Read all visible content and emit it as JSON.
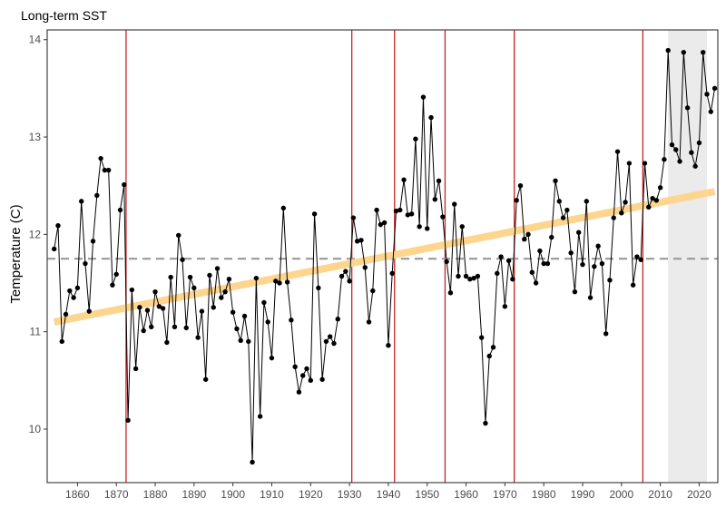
{
  "chart_data": {
    "type": "line",
    "title": "Long-term SST",
    "xlabel": "",
    "ylabel": "Temperature (C)",
    "xlim": [
      1852.2,
      2024.8
    ],
    "ylim": [
      9.45,
      14.1
    ],
    "x_ticks": [
      1860,
      1870,
      1880,
      1890,
      1900,
      1910,
      1920,
      1930,
      1940,
      1950,
      1960,
      1970,
      1980,
      1990,
      2000,
      2010,
      2020
    ],
    "y_ticks": [
      10,
      11,
      12,
      13,
      14
    ],
    "grid": false,
    "mean_line": 11.75,
    "trend": {
      "start": [
        1854,
        11.1
      ],
      "end": [
        2024,
        12.44
      ],
      "color": "#fdd58f"
    },
    "breakpoints": [
      1872.5,
      1930.6,
      1941.6,
      1954.6,
      1972.4,
      2005.5
    ],
    "highlight_range": [
      2012,
      2022
    ],
    "colors": {
      "series": "#000000",
      "breakpoint": "#cc2222",
      "mean": "#999999",
      "highlight": "#ebebeb"
    },
    "series": [
      {
        "name": "SST",
        "x": [
          1854,
          1855,
          1856,
          1857,
          1858,
          1859,
          1860,
          1861,
          1862,
          1863,
          1864,
          1865,
          1866,
          1867,
          1868,
          1869,
          1870,
          1871,
          1872,
          1873,
          1874,
          1875,
          1876,
          1877,
          1878,
          1879,
          1880,
          1881,
          1882,
          1883,
          1884,
          1885,
          1886,
          1887,
          1888,
          1889,
          1890,
          1891,
          1892,
          1893,
          1894,
          1895,
          1896,
          1897,
          1898,
          1899,
          1900,
          1901,
          1902,
          1903,
          1904,
          1905,
          1906,
          1907,
          1908,
          1909,
          1910,
          1911,
          1912,
          1913,
          1914,
          1915,
          1916,
          1917,
          1918,
          1919,
          1920,
          1921,
          1922,
          1923,
          1924,
          1925,
          1926,
          1927,
          1928,
          1929,
          1930,
          1931,
          1932,
          1933,
          1934,
          1935,
          1936,
          1937,
          1938,
          1939,
          1940,
          1941,
          1942,
          1943,
          1944,
          1945,
          1946,
          1947,
          1948,
          1949,
          1950,
          1951,
          1952,
          1953,
          1954,
          1955,
          1956,
          1957,
          1958,
          1959,
          1960,
          1961,
          1962,
          1963,
          1964,
          1965,
          1966,
          1967,
          1968,
          1969,
          1970,
          1971,
          1972,
          1973,
          1974,
          1975,
          1976,
          1977,
          1978,
          1979,
          1980,
          1981,
          1982,
          1983,
          1984,
          1985,
          1986,
          1987,
          1988,
          1989,
          1990,
          1991,
          1992,
          1993,
          1994,
          1995,
          1996,
          1997,
          1998,
          1999,
          2000,
          2001,
          2002,
          2003,
          2004,
          2005,
          2006,
          2007,
          2008,
          2009,
          2010,
          2011,
          2012,
          2013,
          2014,
          2015,
          2016,
          2017,
          2018,
          2019,
          2020,
          2021,
          2022,
          2023,
          2024
        ],
        "values": [
          11.85,
          12.09,
          10.9,
          11.18,
          11.42,
          11.35,
          11.45,
          12.34,
          11.7,
          11.21,
          11.93,
          12.4,
          12.78,
          12.66,
          12.66,
          11.48,
          11.59,
          12.25,
          12.51,
          10.09,
          11.43,
          10.62,
          11.25,
          11.01,
          11.22,
          11.05,
          11.41,
          11.26,
          11.24,
          10.89,
          11.56,
          11.05,
          11.99,
          11.74,
          11.04,
          11.56,
          11.45,
          10.94,
          11.21,
          10.51,
          11.58,
          11.25,
          11.65,
          11.35,
          11.41,
          11.54,
          11.2,
          11.03,
          10.91,
          11.16,
          10.9,
          9.66,
          11.55,
          10.13,
          11.3,
          11.1,
          10.73,
          11.52,
          11.5,
          12.27,
          11.51,
          11.12,
          10.64,
          10.38,
          10.55,
          10.62,
          10.5,
          12.21,
          11.45,
          10.51,
          10.9,
          10.95,
          10.88,
          11.13,
          11.57,
          11.62,
          11.52,
          12.17,
          11.93,
          11.94,
          11.66,
          11.1,
          11.42,
          12.25,
          12.1,
          12.12,
          10.86,
          11.6,
          12.24,
          12.25,
          12.56,
          12.2,
          12.21,
          12.98,
          12.08,
          13.41,
          12.06,
          13.2,
          12.36,
          12.55,
          12.18,
          11.72,
          11.4,
          12.31,
          11.57,
          12.08,
          11.57,
          11.54,
          11.55,
          11.57,
          10.94,
          10.06,
          10.75,
          10.84,
          11.6,
          11.77,
          11.26,
          11.73,
          11.54,
          12.35,
          12.5,
          11.95,
          12.0,
          11.61,
          11.5,
          11.83,
          11.7,
          11.7,
          11.97,
          12.55,
          12.34,
          12.17,
          12.25,
          11.81,
          11.41,
          12.02,
          11.69,
          12.34,
          11.35,
          11.67,
          11.88,
          11.7,
          10.98,
          11.53,
          12.17,
          12.85,
          12.22,
          12.33,
          12.73,
          11.48,
          11.77,
          11.74,
          12.73,
          12.28,
          12.37,
          12.35,
          12.48,
          12.77,
          13.89,
          12.92,
          12.87,
          12.75,
          13.87,
          13.3,
          12.84,
          12.7,
          12.94,
          13.87,
          13.44,
          13.26,
          13.5
        ]
      }
    ]
  }
}
